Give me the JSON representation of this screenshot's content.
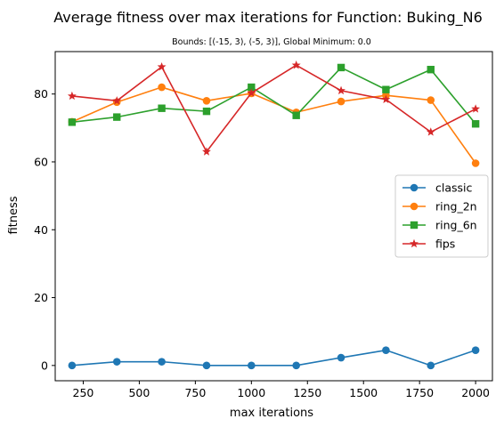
{
  "chart_data": {
    "type": "line",
    "title": "Average fitness over max iterations for Function: Buking_N6",
    "subtitle": "Bounds: [(-15, 3), (-5, 3)], Global Minimum: 0.0",
    "xlabel": "max iterations",
    "ylabel": "fitness",
    "xlim": [
      125,
      2075
    ],
    "ylim": [
      -4.5,
      92.5
    ],
    "xticks": [
      250,
      500,
      750,
      1000,
      1250,
      1500,
      1750,
      2000
    ],
    "yticks": [
      0,
      20,
      40,
      60,
      80
    ],
    "grid": false,
    "legend_position": "center-right",
    "x": [
      200,
      400,
      600,
      800,
      1000,
      1200,
      1400,
      1600,
      1800,
      2000
    ],
    "series": [
      {
        "name": "classic",
        "color": "#1f77b4",
        "marker": "circle",
        "values": [
          0.0,
          1.1,
          1.1,
          0.0,
          0.0,
          0.0,
          2.3,
          4.5,
          0.0,
          4.5
        ]
      },
      {
        "name": "ring_2n",
        "color": "#ff7f0e",
        "marker": "circle",
        "values": [
          71.8,
          77.6,
          82.0,
          78.0,
          80.2,
          74.6,
          77.8,
          79.6,
          78.2,
          59.6
        ]
      },
      {
        "name": "ring_6n",
        "color": "#2ca02c",
        "marker": "square",
        "values": [
          71.7,
          73.2,
          75.8,
          74.9,
          82.0,
          73.7,
          87.8,
          81.3,
          87.2,
          71.2
        ]
      },
      {
        "name": "fips",
        "color": "#d62728",
        "marker": "star",
        "values": [
          79.4,
          78.0,
          88.0,
          63.0,
          80.3,
          88.5,
          81.0,
          78.4,
          68.8,
          75.6
        ]
      }
    ]
  }
}
